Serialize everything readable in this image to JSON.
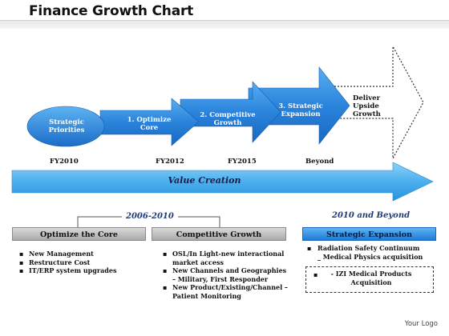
{
  "title": "Finance Growth Chart",
  "colors": {
    "arrow_blue": "#2b86dc",
    "dark_blue": "#1f3a78",
    "grey_box": "#bfbfbf",
    "light_blue_arrow": "#4fb0ee"
  },
  "stages": {
    "strategic_priorities": "Strategic Priorities",
    "optimize_core": "1. Optimize Core",
    "competitive_growth": "2. Competitive Growth",
    "strategic_expansion": "3. Strategic Expansion",
    "deliver": "Deliver Upside Growth"
  },
  "years": [
    "FY2010",
    "FY2012",
    "FY2015",
    "Beyond"
  ],
  "value_creation": "Value Creation",
  "period_2006": "2006-2010",
  "period_2010": "2010 and Beyond",
  "boxes": {
    "optimize": "Optimize the Core",
    "competitive": "Competitive Growth",
    "strategic": "Strategic Expansion"
  },
  "optimize_bullets": [
    "New Management",
    "Restructure Cost",
    "IT/ERP system upgrades"
  ],
  "competitive_bullets": [
    "OSL/In Light-new interactional market access",
    "New Channels and Geographies – Military, First Responder",
    "New Product/Existing/Channel – Patient Monitoring"
  ],
  "strategic_line1": "Radiation Safety Continuum",
  "strategic_line2": "_ Medical Physics acquisition",
  "strategic_dashed": "- IZI Medical Products Acquisition",
  "logo": "Your Logo"
}
